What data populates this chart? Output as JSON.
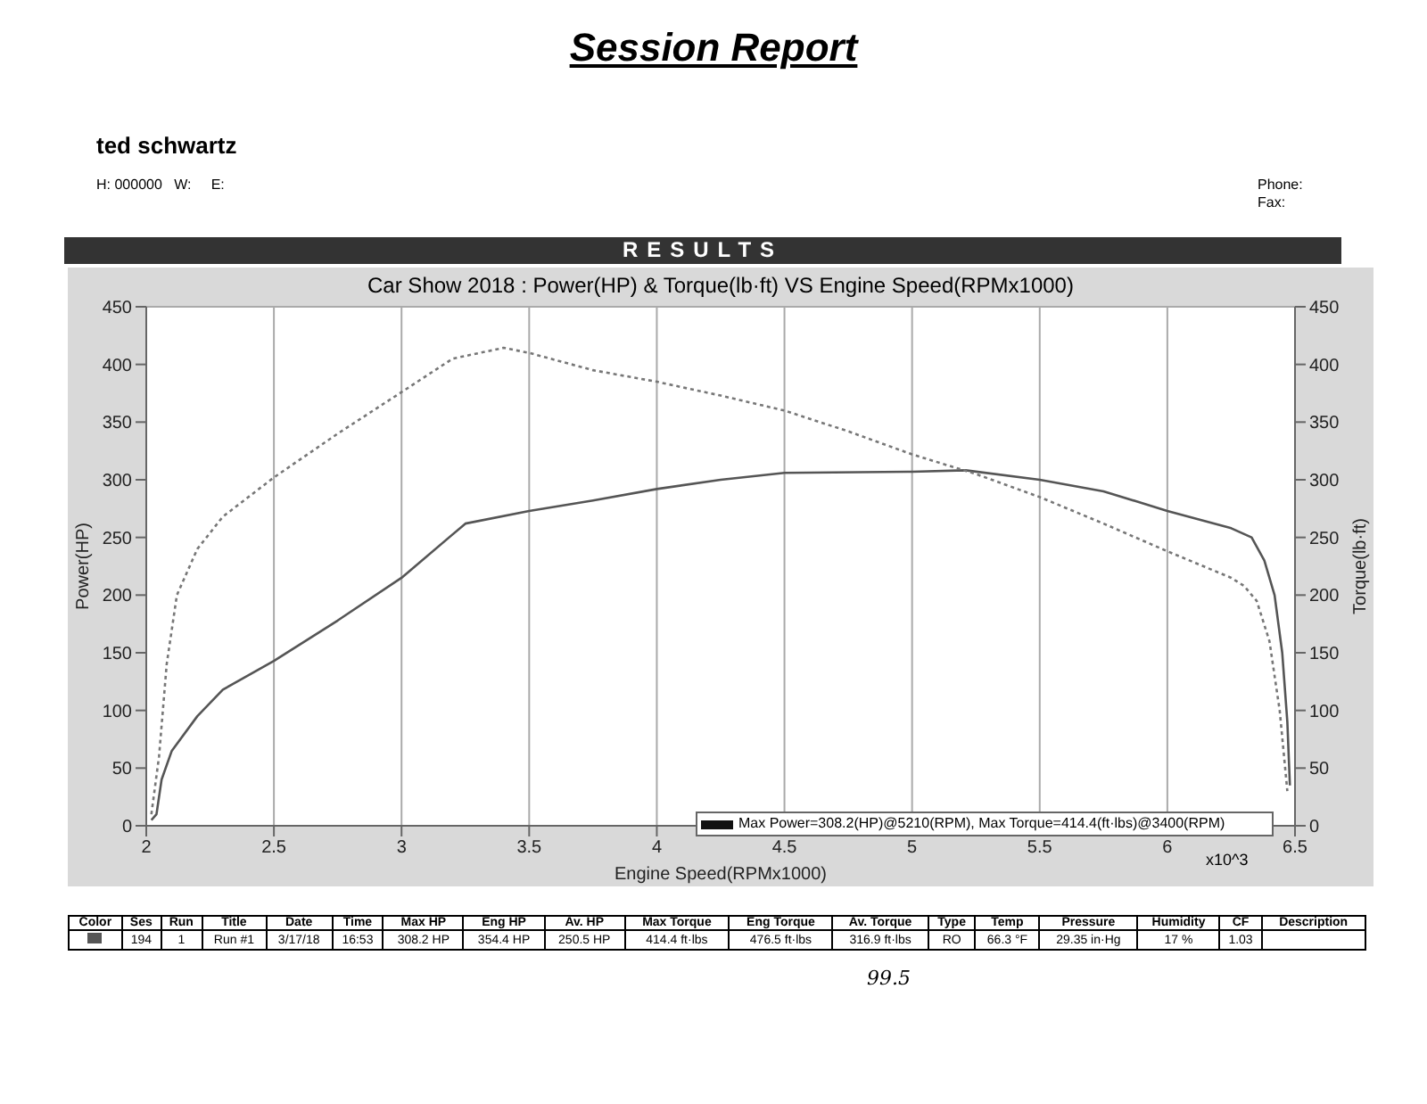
{
  "chart_data": {
    "type": "line",
    "title": "Session Report",
    "subtitle": "Car Show 2018 : Power(HP) & Torque(lb·ft) VS Engine Speed(RPMx1000)",
    "xlabel": "Engine Speed(RPMx1000)",
    "ylabel": "Power(HP)",
    "y2label": "Torque(lb·ft)",
    "series": [
      {
        "color": "#555555",
        "line_style": "solid",
        "x": [
          2.02,
          2.04,
          2.06,
          2.1,
          2.2,
          2.3,
          2.5,
          2.75,
          3.0,
          3.25,
          3.5,
          3.75,
          4.0,
          4.25,
          4.5,
          5.0,
          5.21,
          5.5,
          5.75,
          6.0,
          6.25,
          6.33,
          6.38,
          6.42,
          6.45,
          6.47,
          6.48
        ],
        "values": [
          5,
          10,
          40,
          65,
          95,
          118,
          143,
          178,
          215,
          262,
          273,
          282,
          292,
          300,
          306,
          307,
          308.2,
          300,
          290,
          273,
          258,
          250,
          230,
          200,
          150,
          90,
          35
        ]
      },
      {
        "color": "#777777",
        "line_style": "dotted",
        "axis": "y2",
        "x": [
          2.02,
          2.05,
          2.08,
          2.12,
          2.2,
          2.3,
          2.5,
          2.75,
          3.0,
          3.2,
          3.4,
          3.5,
          3.75,
          4.0,
          4.25,
          4.5,
          4.75,
          5.0,
          5.25,
          5.5,
          5.75,
          6.0,
          6.25,
          6.3,
          6.35,
          6.4,
          6.44,
          6.47
        ],
        "values": [
          10,
          60,
          140,
          200,
          240,
          268,
          302,
          340,
          376,
          405,
          414.4,
          410,
          395,
          385,
          373,
          360,
          342,
          322,
          305,
          285,
          262,
          238,
          215,
          208,
          195,
          160,
          100,
          30
        ]
      }
    ],
    "xlim": [
      2,
      6.5
    ],
    "xticks": [
      2,
      2.5,
      3,
      3.5,
      4,
      4.5,
      5,
      5.5,
      6,
      6.5
    ],
    "ylim": [
      0,
      450
    ],
    "yticks": [
      0,
      50,
      100,
      150,
      200,
      250,
      300,
      350,
      400,
      450
    ],
    "y2lim": [
      0,
      450
    ],
    "y2ticks": [
      0,
      50,
      100,
      150,
      200,
      250,
      300,
      350,
      400,
      450
    ],
    "grid": true,
    "legend": false,
    "marker": "none",
    "annotations": [
      "ted schwartz",
      "H: 000000   W:     E:",
      "Phone:",
      "Fax:",
      "RESULTS",
      "Max Power=308.2(HP)@5210(RPM), Max Torque=414.4(ft·lbs)@3400(RPM)",
      "x10^3",
      "Color",
      "Ses",
      "Run",
      "Title",
      "Date",
      "Time",
      "Max HP",
      "Eng HP",
      "Av. HP",
      "Max Torque",
      "Eng Torque",
      "Av. Torque",
      "Type",
      "Temp",
      "Pressure",
      "Humidity",
      "CF",
      "Description",
      "194",
      "1",
      "Run #1",
      "3/17/18",
      "16:53",
      "308.2 HP",
      "354.4 HP",
      "250.5 HP",
      "414.4 ft·lbs",
      "476.5 ft·lbs",
      "316.9 ft·lbs",
      "RO",
      "66.3 °F",
      "29.35 in·Hg",
      "17 %",
      "1.03",
      "99.5"
    ]
  }
}
